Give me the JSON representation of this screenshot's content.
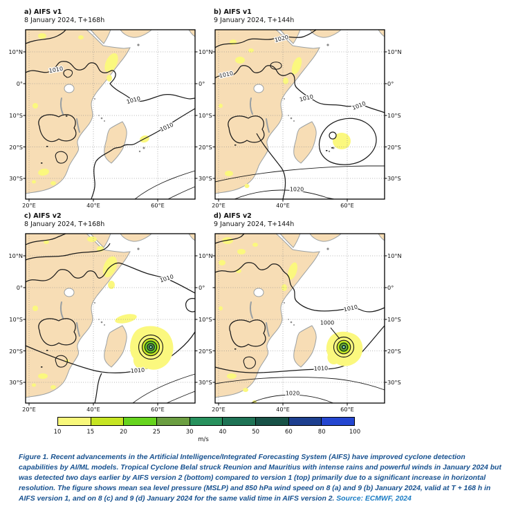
{
  "figure": {
    "panels": [
      {
        "id": "a",
        "title": "a) AIFS v1",
        "subtitle": "8 January 2024, T+168h",
        "contour_labels": [
          "1010",
          "1010",
          "1010"
        ]
      },
      {
        "id": "b",
        "title": "b) AIFS v1",
        "subtitle": "9 January 2024, T+144h",
        "contour_labels": [
          "1020",
          "1010",
          "1010",
          "1010",
          "1020"
        ]
      },
      {
        "id": "c",
        "title": "c) AIFS v2",
        "subtitle": "8 January 2024, T+168h",
        "contour_labels": [
          "1010",
          "1010"
        ]
      },
      {
        "id": "d",
        "title": "d) AIFS v2",
        "subtitle": "9 January 2024, T+144h",
        "contour_labels": [
          "1010",
          "1000",
          "1010",
          "1020"
        ]
      }
    ],
    "axes": {
      "lat_ticks": [
        "10°N",
        "0°",
        "10°S",
        "20°S",
        "30°S"
      ],
      "lon_ticks": [
        "20°E",
        "40°E",
        "60°E"
      ]
    },
    "colorbar": {
      "ticks": [
        "10",
        "15",
        "20",
        "25",
        "30",
        "40",
        "50",
        "60",
        "80",
        "100"
      ],
      "unit": "m/s",
      "colors": [
        "#f8f87b",
        "#c6e523",
        "#66d41e",
        "#6b9e41",
        "#27915d",
        "#1e7355",
        "#185247",
        "#1d3f8f",
        "#2446d0"
      ]
    },
    "map_colors": {
      "land": "#f7ddb5",
      "ocean": "#ffffff",
      "coast": "#9aa0a3",
      "wind_patch": "#fbf87e",
      "contour": "#1a1a1a"
    }
  },
  "caption": {
    "text": "Figure 1. Recent advancements in the Artificial Intelligence/Integrated Forecasting System (AIFS) have improved cyclone detection capabilities by AI/ML models. Tropical Cyclone Belal struck Reunion and Mauritius with intense rains and powerful winds in January 2024 but was detected two days earlier by AIFS version 2 (bottom) compared to version 1 (top) primarily due to a significant increase in horizontal resolution. The figure shows mean sea level pressure (MSLP) and 850 hPa wind speed on 8 (a) and 9 (b) January 2024, valid at T + 168 h in AIFS version 1, and on 8 (c) and 9 (d) January 2024 for the same valid time in AIFS version 2. ",
    "source": "Source: ECMWF, 2024"
  }
}
